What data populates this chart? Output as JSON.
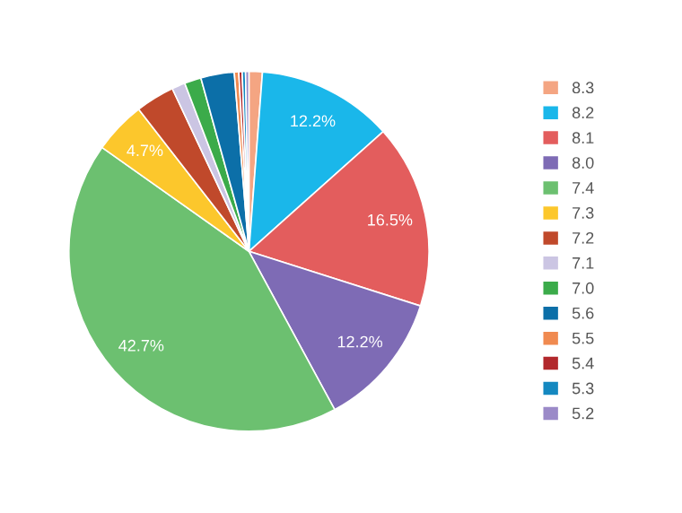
{
  "chart_data": {
    "type": "pie",
    "categories": [
      "8.3",
      "8.2",
      "8.1",
      "8.0",
      "7.4",
      "7.3",
      "7.2",
      "7.1",
      "7.0",
      "5.6",
      "5.5",
      "5.4",
      "5.3",
      "5.2"
    ],
    "values": [
      1.2,
      12.2,
      16.5,
      12.2,
      42.7,
      4.7,
      3.5,
      1.2,
      1.5,
      3.0,
      0.4,
      0.3,
      0.3,
      0.3
    ],
    "value_labels": [
      null,
      "12.2%",
      "16.5%",
      "12.2%",
      "42.7%",
      "4.7%",
      null,
      null,
      null,
      null,
      null,
      null,
      null,
      null
    ],
    "colors": [
      "#f4a582",
      "#1ab7ea",
      "#e35d5d",
      "#7e6bb5",
      "#6cc070",
      "#fcc72c",
      "#c0492b",
      "#cbc5e3",
      "#3bab4a",
      "#0c6fa8",
      "#f08a50",
      "#b2282c",
      "#1488c0",
      "#9b8ac8"
    ],
    "legend": "right"
  }
}
